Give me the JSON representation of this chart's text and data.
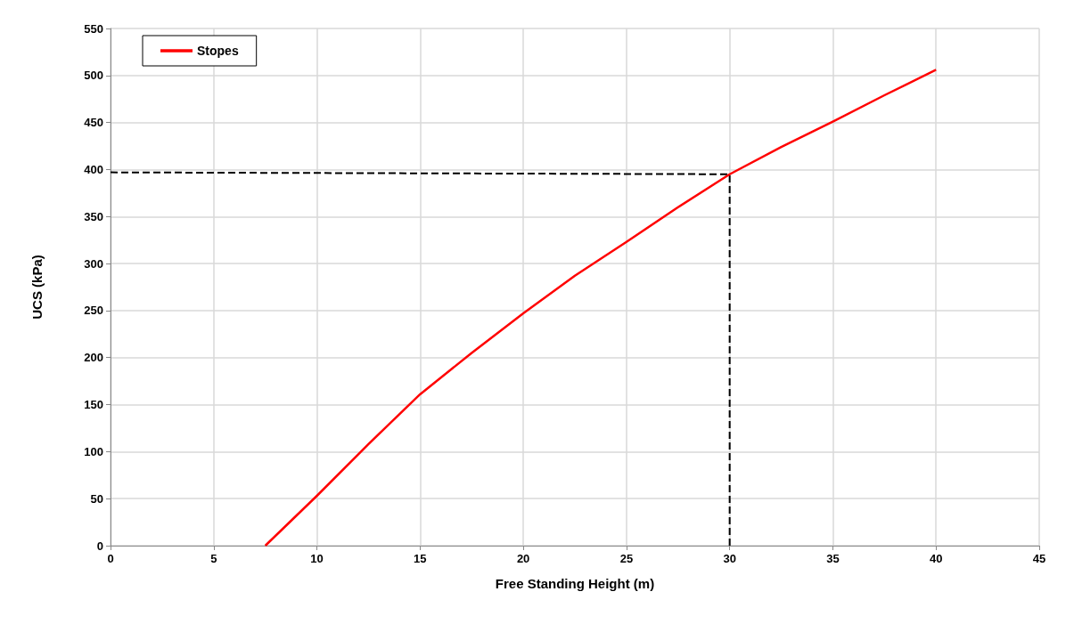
{
  "chart_data": {
    "type": "line",
    "xlabel": "Free Standing Height (m)",
    "ylabel": "UCS (kPa)",
    "series": [
      {
        "name": "Stopes",
        "color": "#ff0000",
        "x": [
          7.5,
          10,
          12.5,
          15,
          17.5,
          20,
          22.5,
          25,
          27.5,
          30,
          32.5,
          35,
          37.5,
          40
        ],
        "values": [
          0,
          53,
          108,
          161,
          205,
          247,
          287,
          323,
          360,
          395,
          424,
          451,
          479,
          506
        ]
      },
      {
        "color": "#000000",
        "line_style": "dashed",
        "x": [
          0,
          30,
          30
        ],
        "values": [
          397,
          395,
          0
        ]
      }
    ],
    "xlim": [
      0,
      45
    ],
    "xticks": [
      0,
      5,
      10,
      15,
      20,
      25,
      30,
      35,
      40,
      45
    ],
    "ylim": [
      0,
      550
    ],
    "yticks": [
      0,
      50,
      100,
      150,
      200,
      250,
      300,
      350,
      400,
      450,
      500,
      550
    ],
    "grid": true,
    "legend": "top left",
    "marker": "none",
    "line_style": "solid"
  }
}
